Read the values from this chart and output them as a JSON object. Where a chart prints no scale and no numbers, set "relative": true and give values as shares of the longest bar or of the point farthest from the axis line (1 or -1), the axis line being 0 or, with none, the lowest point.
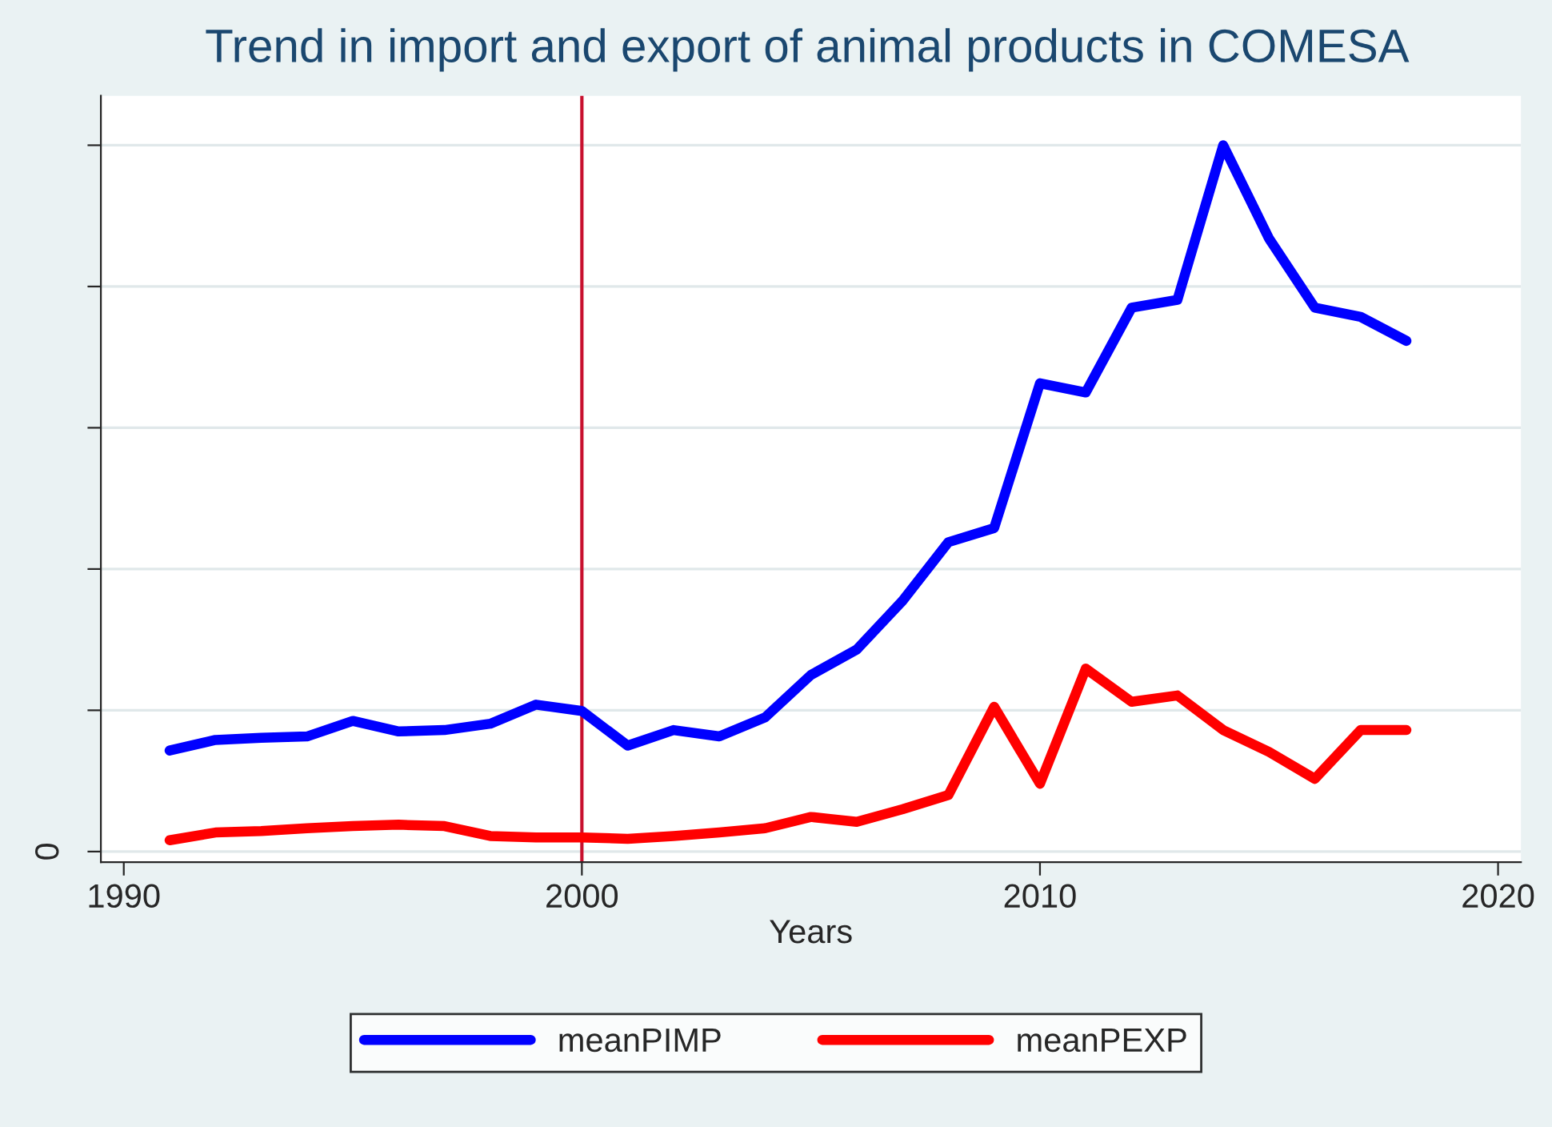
{
  "chart_data": {
    "type": "line",
    "title": "Trend in import and export of animal products in COMESA",
    "xlabel": "Years",
    "relative": true,
    "x": [
      1991,
      1992,
      1993,
      1994,
      1995,
      1996,
      1997,
      1998,
      1999,
      2000,
      2001,
      2002,
      2003,
      2004,
      2005,
      2006,
      2007,
      2008,
      2009,
      2010,
      2011,
      2012,
      2013,
      2014,
      2015,
      2016,
      2017,
      2018
    ],
    "series": [
      {
        "name": "meanPIMP",
        "color": "#0000ff",
        "values": [
          0.143,
          0.158,
          0.161,
          0.163,
          0.185,
          0.17,
          0.172,
          0.181,
          0.208,
          0.199,
          0.15,
          0.172,
          0.163,
          0.19,
          0.25,
          0.286,
          0.355,
          0.438,
          0.458,
          0.663,
          0.65,
          0.77,
          0.781,
          1.0,
          0.868,
          0.77,
          0.757,
          0.723
        ]
      },
      {
        "name": "meanPEXP",
        "color": "#ff0000",
        "values": [
          0.016,
          0.027,
          0.029,
          0.033,
          0.036,
          0.038,
          0.036,
          0.022,
          0.02,
          0.02,
          0.018,
          0.022,
          0.027,
          0.033,
          0.049,
          0.042,
          0.06,
          0.08,
          0.205,
          0.096,
          0.259,
          0.212,
          0.221,
          0.172,
          0.141,
          0.103,
          0.172,
          0.172
        ]
      }
    ],
    "xlim": [
      1989.5,
      2020.5
    ],
    "xticks": [
      1990,
      2000,
      2010,
      2020
    ],
    "annotations": [
      "0"
    ],
    "ref_lines": [
      {
        "axis": "x",
        "value": 2000,
        "label": null,
        "color": "#c8102e"
      }
    ],
    "grid": "y",
    "legend": "bottom",
    "marker": "none",
    "line_style": "solid"
  }
}
